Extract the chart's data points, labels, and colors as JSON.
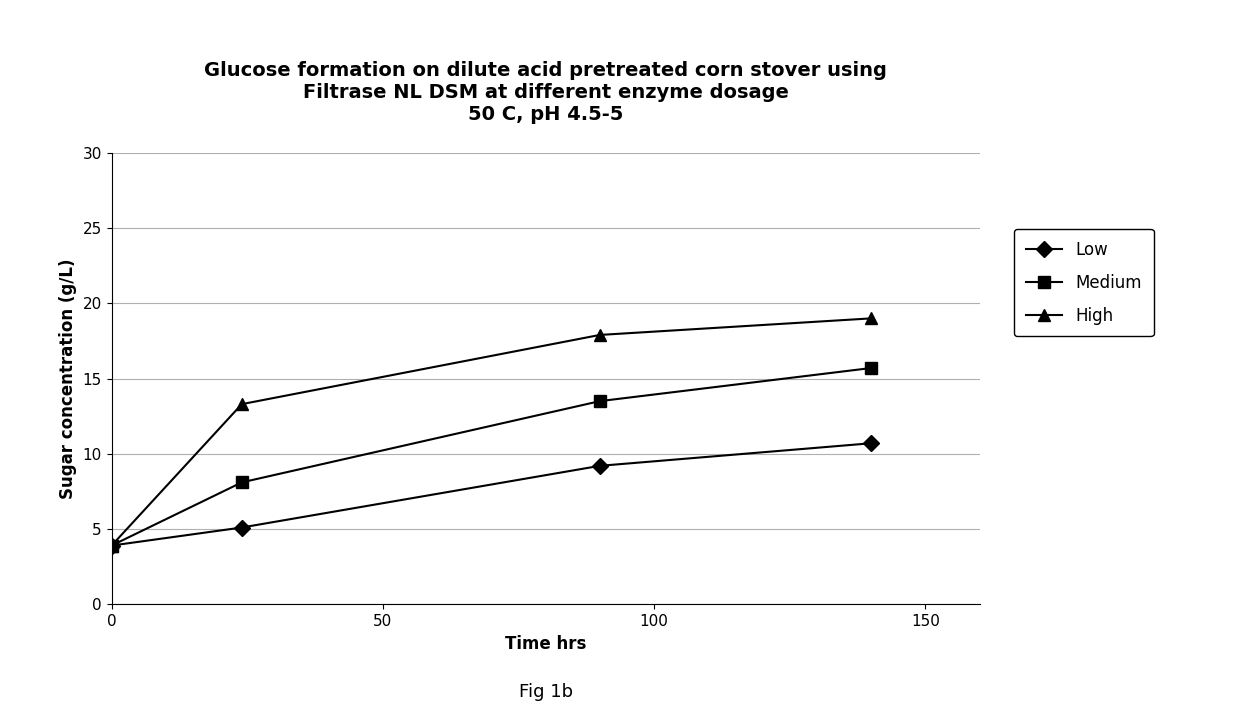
{
  "title_line1": "Glucose formation on dilute acid pretreated corn stover using",
  "title_line2": "Filtrase NL DSM at different enzyme dosage",
  "title_line3": "50 C, pH 4.5-5",
  "xlabel": "Time hrs",
  "ylabel": "Sugar concentration (g/L)",
  "xlim": [
    0,
    160
  ],
  "ylim": [
    0,
    30
  ],
  "xticks": [
    0,
    50,
    100,
    150
  ],
  "yticks": [
    0,
    5,
    10,
    15,
    20,
    25,
    30
  ],
  "series": {
    "Low": {
      "x": [
        0,
        24,
        90,
        140
      ],
      "y": [
        3.9,
        5.1,
        9.2,
        10.7
      ],
      "color": "#000000",
      "marker": "D",
      "linestyle": "-"
    },
    "Medium": {
      "x": [
        0,
        24,
        90,
        140
      ],
      "y": [
        3.9,
        8.1,
        13.5,
        15.7
      ],
      "color": "#000000",
      "marker": "s",
      "linestyle": "-"
    },
    "High": {
      "x": [
        0,
        24,
        90,
        140
      ],
      "y": [
        3.9,
        13.3,
        17.9,
        19.0
      ],
      "color": "#000000",
      "marker": "^",
      "linestyle": "-"
    }
  },
  "legend_labels": [
    "Low",
    "Medium",
    "High"
  ],
  "fig_caption": "Fig 1b",
  "background_color": "#ffffff",
  "grid_color": "#b0b0b0",
  "title_fontsize": 14,
  "axis_label_fontsize": 12,
  "tick_fontsize": 11,
  "legend_fontsize": 12,
  "caption_fontsize": 13
}
